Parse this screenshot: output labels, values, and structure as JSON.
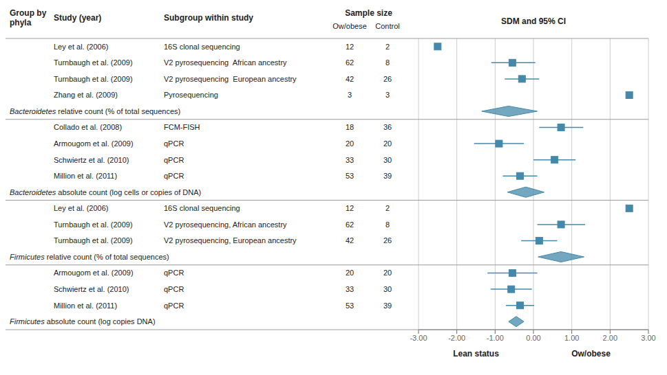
{
  "chart_data": {
    "type": "forest",
    "headers": {
      "group": "Group by\nphyla",
      "study": "Study (year)",
      "subgroup": "Subgroup within study",
      "sample_size": "Sample size",
      "n_ow": "Ow/obese",
      "n_control": "Control",
      "effect": "SDM and 95% CI"
    },
    "annotations": [
      "Lean status",
      "Ow/obese"
    ],
    "sections": [
      {
        "label": "Bacteroidetes relative count (% of total sequences)",
        "rows": [
          {
            "study": "Ley et al. (2006)",
            "subgroup": "16S clonal sequencing",
            "n_ow": 12,
            "n_control": 2,
            "center": -2.5,
            "ci_low": -2.5,
            "ci_high": -2.5
          },
          {
            "study": "Turnbaugh et al. (2009)",
            "subgroup": "V2 pyrosequencing  African ancestry",
            "n_ow": 62,
            "n_control": 8,
            "center": -0.55,
            "ci_low": -1.1,
            "ci_high": 0.05
          },
          {
            "study": "Turnbaugh et al. (2009)",
            "subgroup": "V2 pyrosequencing  European ancestry",
            "n_ow": 42,
            "n_control": 26,
            "center": -0.3,
            "ci_low": -0.75,
            "ci_high": 0.15
          },
          {
            "study": "Zhang et al. (2009)",
            "subgroup": "Pyrosequencing",
            "n_ow": 3,
            "n_control": 3,
            "center": 2.5,
            "ci_low": 2.5,
            "ci_high": 2.5
          }
        ],
        "pooled": {
          "center": -0.65,
          "ci_low": -1.35,
          "ci_high": 0.1
        }
      },
      {
        "label": "Bacteroidetes absolute count (log cells or copies of DNA)",
        "rows": [
          {
            "study": "Collado et al. (2008)",
            "subgroup": "FCM-FISH",
            "n_ow": 18,
            "n_control": 36,
            "center": 0.72,
            "ci_low": 0.15,
            "ci_high": 1.3
          },
          {
            "study": "Armougom et al. (2009)",
            "subgroup": "qPCR",
            "n_ow": 20,
            "n_control": 20,
            "center": -0.9,
            "ci_low": -1.55,
            "ci_high": -0.25
          },
          {
            "study": "Schwiertz et al. (2010)",
            "subgroup": "qPCR",
            "n_ow": 33,
            "n_control": 30,
            "center": 0.55,
            "ci_low": 0.0,
            "ci_high": 1.1
          },
          {
            "study": "Million et al. (2011)",
            "subgroup": "qPCR",
            "n_ow": 53,
            "n_control": 39,
            "center": -0.35,
            "ci_low": -0.8,
            "ci_high": 0.1
          }
        ],
        "pooled": {
          "center": -0.2,
          "ci_low": -0.68,
          "ci_high": 0.28
        }
      },
      {
        "label": "Firmicutes relative count (% of total sequences)",
        "rows": [
          {
            "study": "Ley et al. (2006)",
            "subgroup": "16S clonal sequencing",
            "n_ow": 12,
            "n_control": 2,
            "center": 2.5,
            "ci_low": 2.5,
            "ci_high": 2.5
          },
          {
            "study": "Turnbaugh et al. (2009)",
            "subgroup": "V2 pyrosequencing, African ancestry",
            "n_ow": 62,
            "n_control": 8,
            "center": 0.72,
            "ci_low": 0.1,
            "ci_high": 1.35
          },
          {
            "study": "Turnbaugh et al. (2009)",
            "subgroup": "V2 pyrosequencing, European ancestry",
            "n_ow": 42,
            "n_control": 26,
            "center": 0.15,
            "ci_low": -0.32,
            "ci_high": 0.62
          }
        ],
        "pooled": {
          "center": 0.72,
          "ci_low": 0.12,
          "ci_high": 1.32
        }
      },
      {
        "label": "Firmicutes absolute count (log copies DNA)",
        "rows": [
          {
            "study": "Armougom et al. (2009)",
            "subgroup": "qPCR",
            "n_ow": 20,
            "n_control": 20,
            "center": -0.55,
            "ci_low": -1.2,
            "ci_high": 0.1
          },
          {
            "study": "Schwiertz et al. (2010)",
            "subgroup": "qPCR",
            "n_ow": 33,
            "n_control": 30,
            "center": -0.58,
            "ci_low": -1.12,
            "ci_high": -0.04
          },
          {
            "study": "Million et al. (2011)",
            "subgroup": "qPCR",
            "n_ow": 53,
            "n_control": 39,
            "center": -0.35,
            "ci_low": -0.72,
            "ci_high": 0.02
          }
        ],
        "pooled": {
          "center": -0.45,
          "ci_low": -0.65,
          "ci_high": -0.25
        }
      }
    ],
    "xlim": [
      -3,
      3
    ],
    "xticks": [
      {
        "value": -3,
        "label": "-3.00"
      },
      {
        "value": -2,
        "label": "-2.00"
      },
      {
        "value": -1,
        "label": "-1.00"
      },
      {
        "value": 0,
        "label": "0.00"
      },
      {
        "value": 1,
        "label": "1.00"
      },
      {
        "value": 2,
        "label": "2.00"
      },
      {
        "value": 3,
        "label": "3.00"
      }
    ],
    "grid": true,
    "color": "#4488aa"
  }
}
